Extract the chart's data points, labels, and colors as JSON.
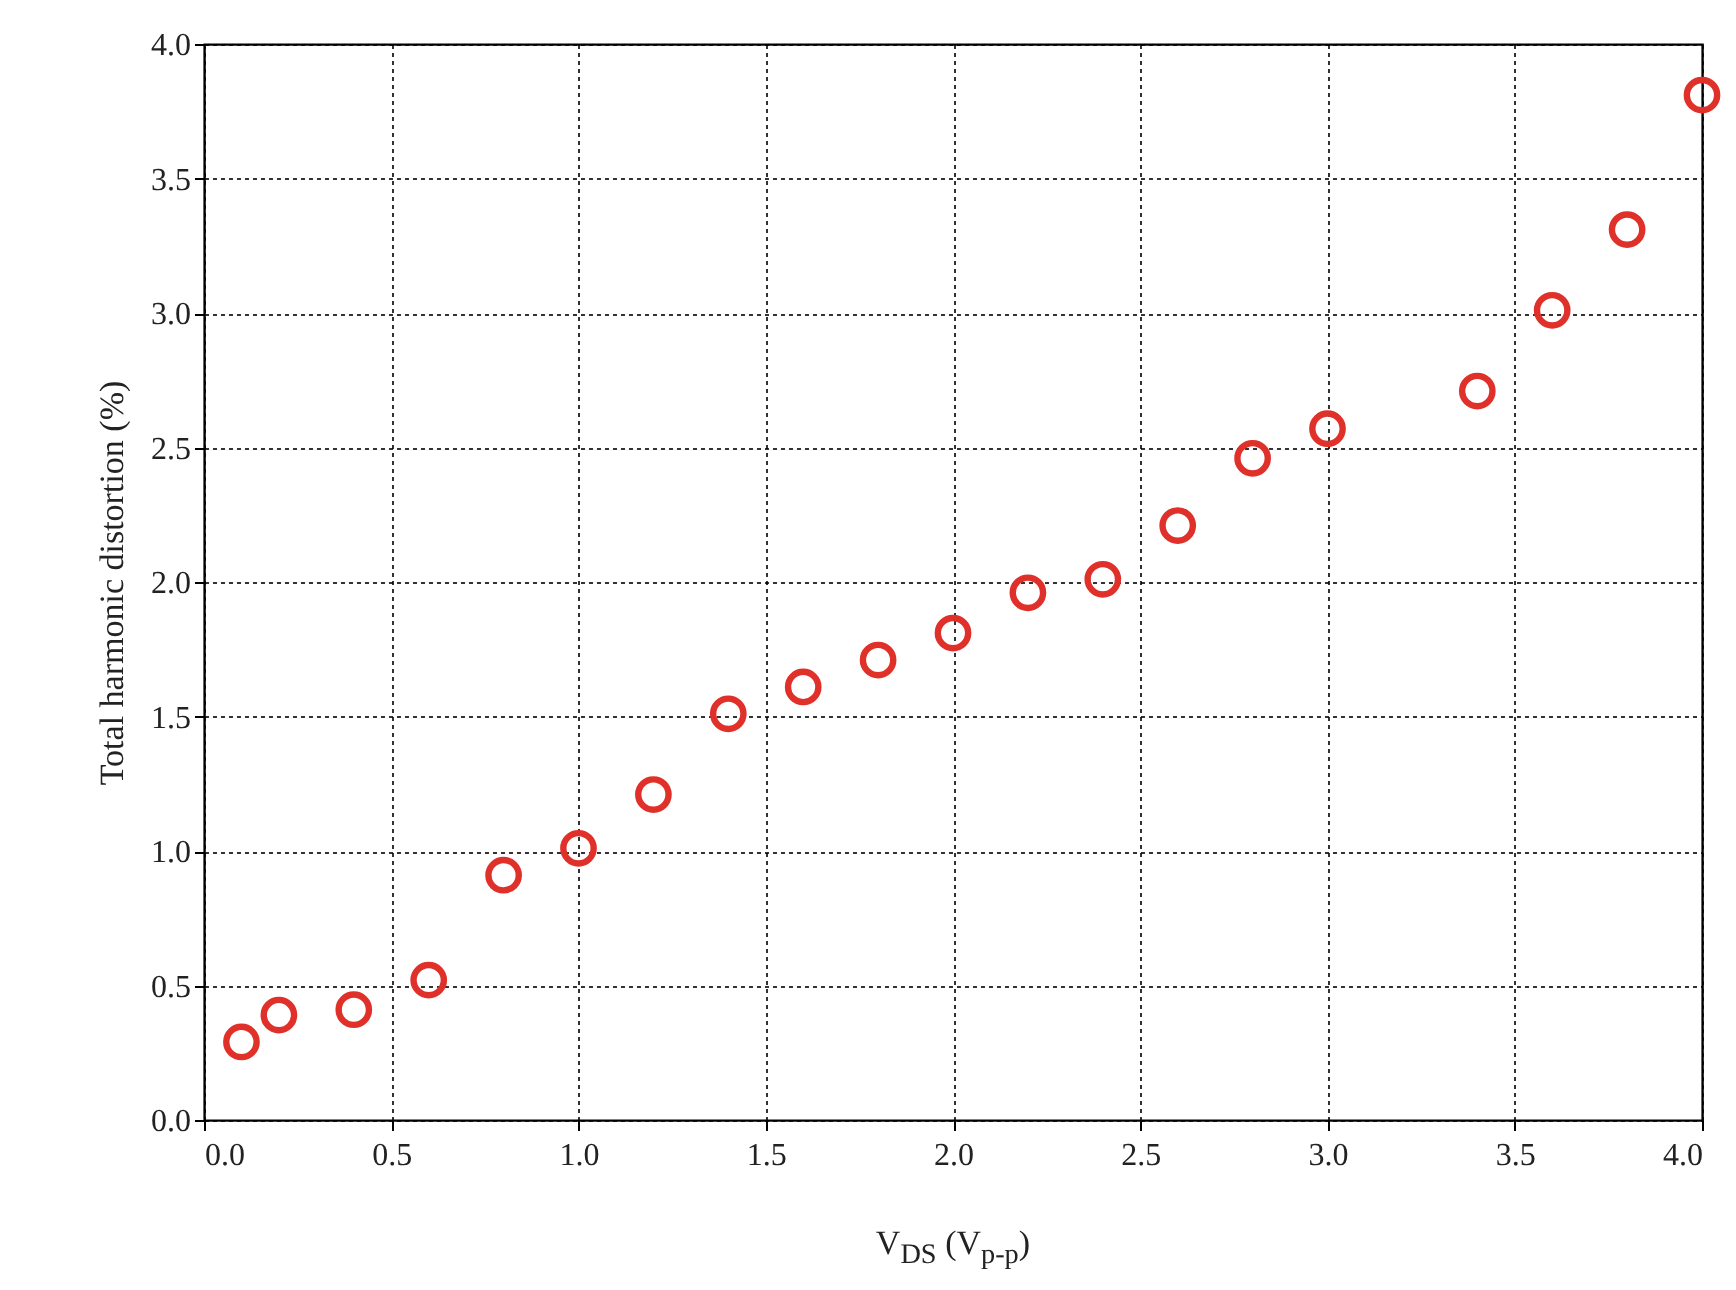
{
  "chart_data": {
    "type": "scatter",
    "xlabel": "V$_{DS}$ (V$_{p-p}$)",
    "ylabel": "Total harmonic distortion (%)",
    "x": [
      0.1,
      0.2,
      0.4,
      0.6,
      0.8,
      1.0,
      1.2,
      1.4,
      1.6,
      1.8,
      2.0,
      2.2,
      2.4,
      2.6,
      2.8,
      3.0,
      3.4,
      3.6,
      3.8,
      4.0
    ],
    "series": [
      {
        "color": "#e0302a",
        "values": [
          0.29,
          0.39,
          0.41,
          0.52,
          0.91,
          1.01,
          1.21,
          1.51,
          1.61,
          1.71,
          1.81,
          1.96,
          2.01,
          2.21,
          2.46,
          2.57,
          2.71,
          3.01,
          3.31,
          3.81
        ]
      }
    ],
    "xlim": [
      0,
      4
    ],
    "ylim": [
      0,
      4
    ],
    "xticks": [
      {
        "value": 0,
        "label": "0.0"
      },
      0.5,
      {
        "value": 1,
        "label": "1.0"
      },
      1.5,
      {
        "value": 2,
        "label": "2.0"
      },
      2.5,
      {
        "value": 3,
        "label": "3.0"
      },
      3.5,
      {
        "value": 4,
        "label": "4.0"
      }
    ],
    "yticks": [
      {
        "value": 0,
        "label": "0.0"
      },
      0.5,
      {
        "value": 1,
        "label": "1.0"
      },
      1.5,
      {
        "value": 2,
        "label": "2.0"
      },
      2.5,
      {
        "value": 3,
        "label": "3.0"
      },
      3.5,
      {
        "value": 4,
        "label": "4.0"
      }
    ],
    "grid": true,
    "marker": "circle",
    "legend": false
  }
}
